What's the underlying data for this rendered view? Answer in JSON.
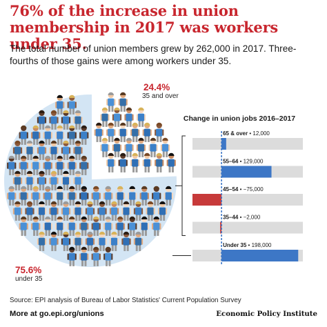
{
  "header": {
    "title": "76% of the increase in union membership in 2017 was workers under 35.",
    "subtitle": "The total number of union members grew by 262,000 in 2017. Three-fourths of those gains were among workers under 35."
  },
  "colors": {
    "title_red": "#c8262e",
    "bar_blue": "#3d77c6",
    "bar_red": "#c73a3a",
    "bar_bg": "#dcdcdc",
    "pie_bg": "#d3e5f4",
    "shirt_blue": "#3c80c8"
  },
  "pie": {
    "older": {
      "pct": "24.4%",
      "label": "35 and over",
      "fraction": 0.244
    },
    "younger": {
      "pct": "75.6%",
      "label": "under 35",
      "fraction": 0.756
    }
  },
  "chart_data": {
    "type": "bar",
    "title": "Change in union jobs 2016–2017",
    "categories": [
      "65 & over",
      "55–64",
      "45–54",
      "35–44",
      "Under 35"
    ],
    "values": [
      12000,
      129000,
      -75000,
      -2000,
      198000
    ],
    "value_labels": [
      "12,000",
      "129,000",
      "−75,000",
      "−2,000",
      "198,000"
    ],
    "separator": "•",
    "xlim": [
      -75000,
      210000
    ],
    "orientation": "horizontal",
    "grid": false
  },
  "footer": {
    "source": "Source: EPI analysis of Bureau of Labor Statistics' Current Population Survey",
    "more": "More at go.epi.org/unions",
    "brand": "Economic Policy Institute"
  }
}
